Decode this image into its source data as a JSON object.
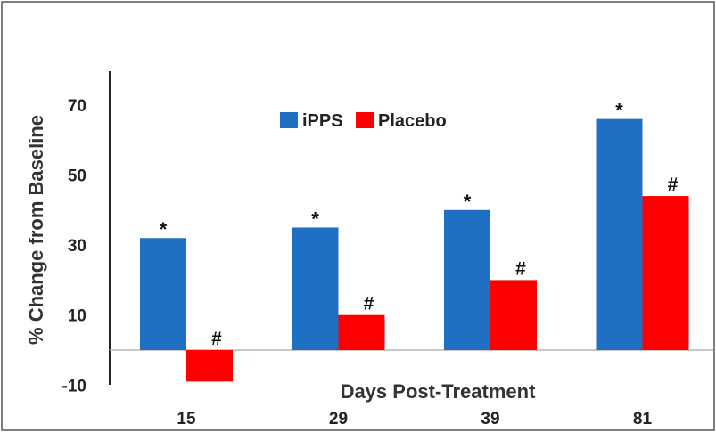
{
  "chart_data": {
    "type": "bar",
    "title": "",
    "xlabel": "Days Post-Treatment",
    "ylabel": "% Change from Baseline",
    "categories": [
      "15",
      "29",
      "39",
      "81"
    ],
    "y_ticks": [
      "70",
      "50",
      "30",
      "10",
      "-10"
    ],
    "ylim": [
      -10,
      75
    ],
    "grid": false,
    "legend_position": "top-center",
    "series": [
      {
        "name": "iPPS",
        "color": "#1f6fc4",
        "values": [
          32,
          35,
          40,
          66
        ],
        "markers": [
          "*",
          "*",
          "*",
          "*"
        ]
      },
      {
        "name": "Placebo",
        "color": "#ff0000",
        "values": [
          -9,
          10,
          20,
          44
        ],
        "markers": [
          "#",
          "#",
          "#",
          "#"
        ]
      }
    ]
  }
}
